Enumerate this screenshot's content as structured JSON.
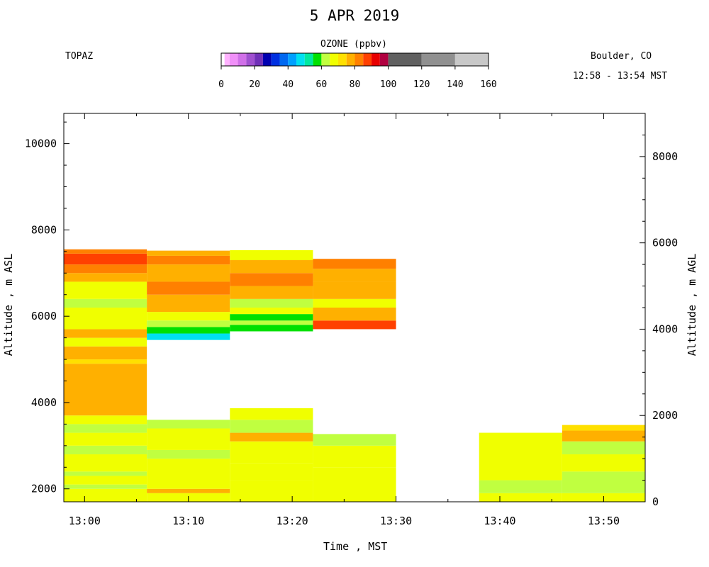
{
  "title": "5 APR 2019",
  "site": "TOPAZ",
  "location": "Boulder, CO",
  "time_range": "12:58 - 13:54 MST",
  "colorbar": {
    "title": "OZONE (ppbv)",
    "ticks": [
      0,
      20,
      40,
      60,
      80,
      100,
      120,
      140,
      160
    ],
    "segments": [
      {
        "from": 0,
        "to": 2,
        "color": "#ffffff"
      },
      {
        "from": 2,
        "to": 5,
        "color": "#ffb2ff"
      },
      {
        "from": 5,
        "to": 10,
        "color": "#f090f8"
      },
      {
        "from": 10,
        "to": 15,
        "color": "#d070e8"
      },
      {
        "from": 15,
        "to": 20,
        "color": "#a050d0"
      },
      {
        "from": 20,
        "to": 25,
        "color": "#7030b8"
      },
      {
        "from": 25,
        "to": 30,
        "color": "#0000b0"
      },
      {
        "from": 30,
        "to": 35,
        "color": "#0030e0"
      },
      {
        "from": 35,
        "to": 40,
        "color": "#0068f0"
      },
      {
        "from": 40,
        "to": 45,
        "color": "#00a0ff"
      },
      {
        "from": 45,
        "to": 50,
        "color": "#00e0f0"
      },
      {
        "from": 50,
        "to": 55,
        "color": "#00e8a0"
      },
      {
        "from": 55,
        "to": 60,
        "color": "#00e000"
      },
      {
        "from": 60,
        "to": 65,
        "color": "#c0ff40"
      },
      {
        "from": 65,
        "to": 70,
        "color": "#f0ff00"
      },
      {
        "from": 70,
        "to": 75,
        "color": "#ffe000"
      },
      {
        "from": 75,
        "to": 80,
        "color": "#ffb000"
      },
      {
        "from": 80,
        "to": 85,
        "color": "#ff8000"
      },
      {
        "from": 85,
        "to": 90,
        "color": "#ff4000"
      },
      {
        "from": 90,
        "to": 95,
        "color": "#e80000"
      },
      {
        "from": 95,
        "to": 100,
        "color": "#b00040"
      },
      {
        "from": 100,
        "to": 120,
        "color": "#606060"
      },
      {
        "from": 120,
        "to": 140,
        "color": "#909090"
      },
      {
        "from": 140,
        "to": 160,
        "color": "#c8c8c8"
      }
    ]
  },
  "chart_data": {
    "type": "heatmap",
    "title": "5 APR 2019",
    "xlabel": "Time , MST",
    "ylabel_left": "Altitude , m ASL",
    "ylabel_right": "Altitude , m AGL",
    "xlim": [
      "12:58",
      "13:54"
    ],
    "ylim_left": [
      1700,
      10700
    ],
    "ylim_right": [
      0,
      9000
    ],
    "x_ticks": [
      "13:00",
      "13:10",
      "13:20",
      "13:30",
      "13:40",
      "13:50"
    ],
    "y_ticks_left": [
      2000,
      4000,
      6000,
      8000,
      10000
    ],
    "y_ticks_right": [
      0,
      2000,
      4000,
      6000,
      8000
    ],
    "z_label": "OZONE (ppbv)",
    "profiles": [
      {
        "t_start": "12:58",
        "t_end": "13:06",
        "layers": [
          {
            "bottom": 1700,
            "top": 2000,
            "ozone": 67
          },
          {
            "bottom": 2000,
            "top": 2100,
            "ozone": 63
          },
          {
            "bottom": 2100,
            "top": 2300,
            "ozone": 67
          },
          {
            "bottom": 2300,
            "top": 2400,
            "ozone": 63
          },
          {
            "bottom": 2400,
            "top": 2800,
            "ozone": 67
          },
          {
            "bottom": 2800,
            "top": 3000,
            "ozone": 63
          },
          {
            "bottom": 3000,
            "top": 3300,
            "ozone": 67
          },
          {
            "bottom": 3300,
            "top": 3500,
            "ozone": 63
          },
          {
            "bottom": 3500,
            "top": 3700,
            "ozone": 68
          },
          {
            "bottom": 3700,
            "top": 4900,
            "ozone": 76
          },
          {
            "bottom": 4900,
            "top": 5000,
            "ozone": 72
          },
          {
            "bottom": 5000,
            "top": 5300,
            "ozone": 76
          },
          {
            "bottom": 5300,
            "top": 5500,
            "ozone": 68
          },
          {
            "bottom": 5500,
            "top": 5700,
            "ozone": 76
          },
          {
            "bottom": 5700,
            "top": 6200,
            "ozone": 68
          },
          {
            "bottom": 6200,
            "top": 6400,
            "ozone": 63
          },
          {
            "bottom": 6400,
            "top": 6800,
            "ozone": 68
          },
          {
            "bottom": 6800,
            "top": 7000,
            "ozone": 78
          },
          {
            "bottom": 7000,
            "top": 7200,
            "ozone": 83
          },
          {
            "bottom": 7200,
            "top": 7450,
            "ozone": 88
          },
          {
            "bottom": 7450,
            "top": 7550,
            "ozone": 80
          }
        ]
      },
      {
        "t_start": "13:06",
        "t_end": "13:14",
        "layers": [
          {
            "bottom": 1700,
            "top": 1900,
            "ozone": 67
          },
          {
            "bottom": 1900,
            "top": 2000,
            "ozone": 78
          },
          {
            "bottom": 2000,
            "top": 2700,
            "ozone": 67
          },
          {
            "bottom": 2700,
            "top": 2900,
            "ozone": 63
          },
          {
            "bottom": 2900,
            "top": 3400,
            "ozone": 67
          },
          {
            "bottom": 3400,
            "top": 3600,
            "ozone": 63
          },
          {
            "bottom": 5450,
            "top": 5600,
            "ozone": 48
          },
          {
            "bottom": 5600,
            "top": 5750,
            "ozone": 57
          },
          {
            "bottom": 5750,
            "top": 5900,
            "ozone": 62
          },
          {
            "bottom": 5900,
            "top": 6100,
            "ozone": 67
          },
          {
            "bottom": 6100,
            "top": 6500,
            "ozone": 76
          },
          {
            "bottom": 6500,
            "top": 6800,
            "ozone": 82
          },
          {
            "bottom": 6800,
            "top": 7200,
            "ozone": 78
          },
          {
            "bottom": 7200,
            "top": 7400,
            "ozone": 83
          },
          {
            "bottom": 7400,
            "top": 7520,
            "ozone": 76
          }
        ]
      },
      {
        "t_start": "13:14",
        "t_end": "13:22",
        "layers": [
          {
            "bottom": 1700,
            "top": 2200,
            "ozone": 67
          },
          {
            "bottom": 2200,
            "top": 2600,
            "ozone": 68
          },
          {
            "bottom": 2600,
            "top": 3100,
            "ozone": 67
          },
          {
            "bottom": 3100,
            "top": 3300,
            "ozone": 77
          },
          {
            "bottom": 3300,
            "top": 3600,
            "ozone": 63
          },
          {
            "bottom": 3600,
            "top": 3870,
            "ozone": 67
          },
          {
            "bottom": 5650,
            "top": 5800,
            "ozone": 57
          },
          {
            "bottom": 5800,
            "top": 5900,
            "ozone": 63
          },
          {
            "bottom": 5900,
            "top": 6050,
            "ozone": 57
          },
          {
            "bottom": 6050,
            "top": 6200,
            "ozone": 67
          },
          {
            "bottom": 6200,
            "top": 6400,
            "ozone": 63
          },
          {
            "bottom": 6400,
            "top": 6700,
            "ozone": 78
          },
          {
            "bottom": 6700,
            "top": 7000,
            "ozone": 82
          },
          {
            "bottom": 7000,
            "top": 7300,
            "ozone": 78
          },
          {
            "bottom": 7300,
            "top": 7530,
            "ozone": 65
          }
        ]
      },
      {
        "t_start": "13:22",
        "t_end": "13:30",
        "layers": [
          {
            "bottom": 1700,
            "top": 2500,
            "ozone": 67
          },
          {
            "bottom": 2500,
            "top": 3000,
            "ozone": 68
          },
          {
            "bottom": 3000,
            "top": 3270,
            "ozone": 63
          },
          {
            "bottom": 5700,
            "top": 5900,
            "ozone": 88
          },
          {
            "bottom": 5900,
            "top": 6200,
            "ozone": 78
          },
          {
            "bottom": 6200,
            "top": 6400,
            "ozone": 68
          },
          {
            "bottom": 6400,
            "top": 6800,
            "ozone": 78
          },
          {
            "bottom": 6800,
            "top": 7100,
            "ozone": 76
          },
          {
            "bottom": 7100,
            "top": 7330,
            "ozone": 80
          }
        ]
      },
      {
        "t_start": "13:38",
        "t_end": "13:46",
        "layers": [
          {
            "bottom": 1700,
            "top": 1900,
            "ozone": 67
          },
          {
            "bottom": 1900,
            "top": 2200,
            "ozone": 63
          },
          {
            "bottom": 2200,
            "top": 3300,
            "ozone": 67
          }
        ]
      },
      {
        "t_start": "13:46",
        "t_end": "13:54",
        "layers": [
          {
            "bottom": 1700,
            "top": 1900,
            "ozone": 67
          },
          {
            "bottom": 1900,
            "top": 2400,
            "ozone": 63
          },
          {
            "bottom": 2400,
            "top": 2800,
            "ozone": 67
          },
          {
            "bottom": 2800,
            "top": 3100,
            "ozone": 63
          },
          {
            "bottom": 3100,
            "top": 3350,
            "ozone": 78
          },
          {
            "bottom": 3350,
            "top": 3480,
            "ozone": 72
          }
        ]
      }
    ]
  }
}
